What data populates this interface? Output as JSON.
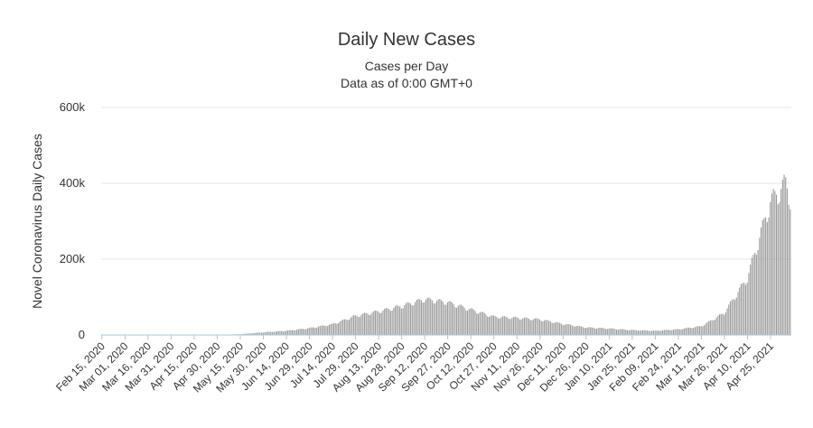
{
  "chart_data": {
    "type": "bar",
    "title": "Daily New Cases",
    "subtitle": [
      "Cases per Day",
      "Data as of 0:00 GMT+0"
    ],
    "xlabel": "",
    "ylabel": "Novel Coronavirus Daily Cases",
    "ylim": [
      0,
      600000
    ],
    "yticks": [
      "0",
      "200k",
      "400k",
      "600k"
    ],
    "grid": true,
    "bar_color": "#999999",
    "baseline_color": "#a9c6e0",
    "x_start": "2020-02-15",
    "x_end": "2021-05-08",
    "xtick_labels": [
      "Feb 15, 2020",
      "Mar 01, 2020",
      "Mar 16, 2020",
      "Mar 31, 2020",
      "Apr 15, 2020",
      "Apr 30, 2020",
      "May 15, 2020",
      "May 30, 2020",
      "Jun 14, 2020",
      "Jun 29, 2020",
      "Jul 14, 2020",
      "Jul 29, 2020",
      "Aug 13, 2020",
      "Aug 28, 2020",
      "Sep 12, 2020",
      "Sep 27, 2020",
      "Oct 12, 2020",
      "Oct 27, 2020",
      "Nov 11, 2020",
      "Nov 26, 2020",
      "Dec 11, 2020",
      "Dec 26, 2020",
      "Jan 10, 2021",
      "Jan 25, 2021",
      "Feb 09, 2021",
      "Feb 24, 2021",
      "Mar 11, 2021",
      "Mar 26, 2021",
      "Apr 10, 2021",
      "Apr 25, 2021"
    ],
    "series": [
      {
        "values": [
          [
            "2020-02-15",
            0
          ],
          [
            "2020-04-30",
            0
          ],
          [
            "2020-05-15",
            2000
          ],
          [
            "2020-05-30",
            7000
          ],
          [
            "2020-06-14",
            11000
          ],
          [
            "2020-06-29",
            18000
          ],
          [
            "2020-07-14",
            28000
          ],
          [
            "2020-07-29",
            50000
          ],
          [
            "2020-08-13",
            62000
          ],
          [
            "2020-08-28",
            76000
          ],
          [
            "2020-09-12",
            94000
          ],
          [
            "2020-09-27",
            86000
          ],
          [
            "2020-10-12",
            67000
          ],
          [
            "2020-10-27",
            48000
          ],
          [
            "2020-11-11",
            45000
          ],
          [
            "2020-11-26",
            41000
          ],
          [
            "2020-12-11",
            29000
          ],
          [
            "2020-12-26",
            20000
          ],
          [
            "2021-01-10",
            17000
          ],
          [
            "2021-01-25",
            13000
          ],
          [
            "2021-02-09",
            11000
          ],
          [
            "2021-02-24",
            15000
          ],
          [
            "2021-03-11",
            23000
          ],
          [
            "2021-03-26",
            58000
          ],
          [
            "2021-04-10",
            150000
          ],
          [
            "2021-04-25",
            350000
          ],
          [
            "2021-05-05",
            400000
          ],
          [
            "2021-05-08",
            360000
          ]
        ]
      }
    ]
  }
}
